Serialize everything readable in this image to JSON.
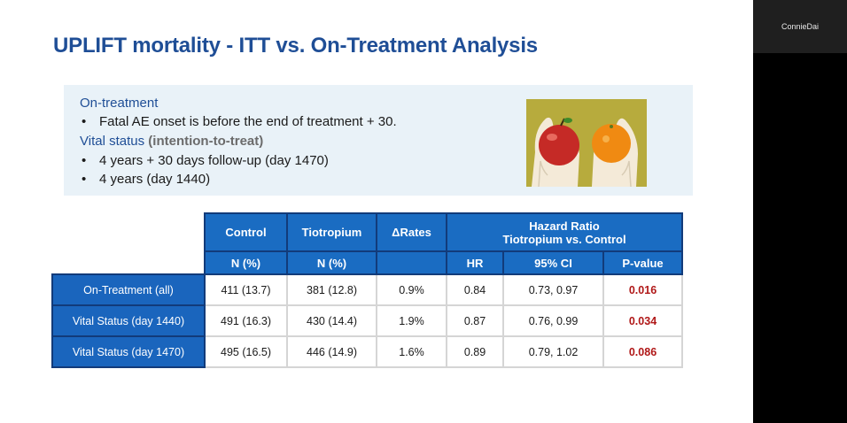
{
  "slide": {
    "title": "UPLIFT mortality -  ITT vs. On-Treatment Analysis",
    "box": {
      "on_treatment_heading": "On-treatment",
      "bullet_1": "Fatal AE onset is before the end of treatment + 30.",
      "vital_heading": "Vital status",
      "vital_sub": "(intention-to-treat)",
      "bullet_2": "4 years + 30 days follow-up (day 1470)",
      "bullet_3": "4 years (day 1440)",
      "bullet_char": "•"
    },
    "table": {
      "headers": {
        "control": "Control",
        "tiotropium": "Tiotropium",
        "delta_rates": "ΔRates",
        "hazard_ratio": "Hazard Ratio",
        "hazard_ratio_sub": "Tiotropium vs. Control"
      },
      "subheaders": {
        "control": "N (%)",
        "tiotropium": "N (%)",
        "hr": "HR",
        "ci": "95% CI",
        "p": "P-value"
      },
      "rows": [
        {
          "label": "On-Treatment (all)",
          "control": "411 (13.7)",
          "tiotropium": "381 (12.8)",
          "delta": "0.9%",
          "hr": "0.84",
          "ci": "0.73, 0.97",
          "p": "0.016"
        },
        {
          "label": "Vital Status (day 1440)",
          "control": "491 (16.3)",
          "tiotropium": "430 (14.4)",
          "delta": "1.9%",
          "hr": "0.87",
          "ci": "0.76, 0.99",
          "p": "0.034"
        },
        {
          "label": "Vital Status (day 1470)",
          "control": "495 (16.5)",
          "tiotropium": "446 (14.9)",
          "delta": "1.6%",
          "hr": "0.89",
          "ci": "0.79, 1.02",
          "p": "0.086"
        }
      ]
    }
  },
  "video": {
    "participant_name": "ConnieDai"
  },
  "colors": {
    "title": "#1f4e96",
    "header_blue": "#1a6cc2",
    "p_value_red": "#b01818"
  }
}
